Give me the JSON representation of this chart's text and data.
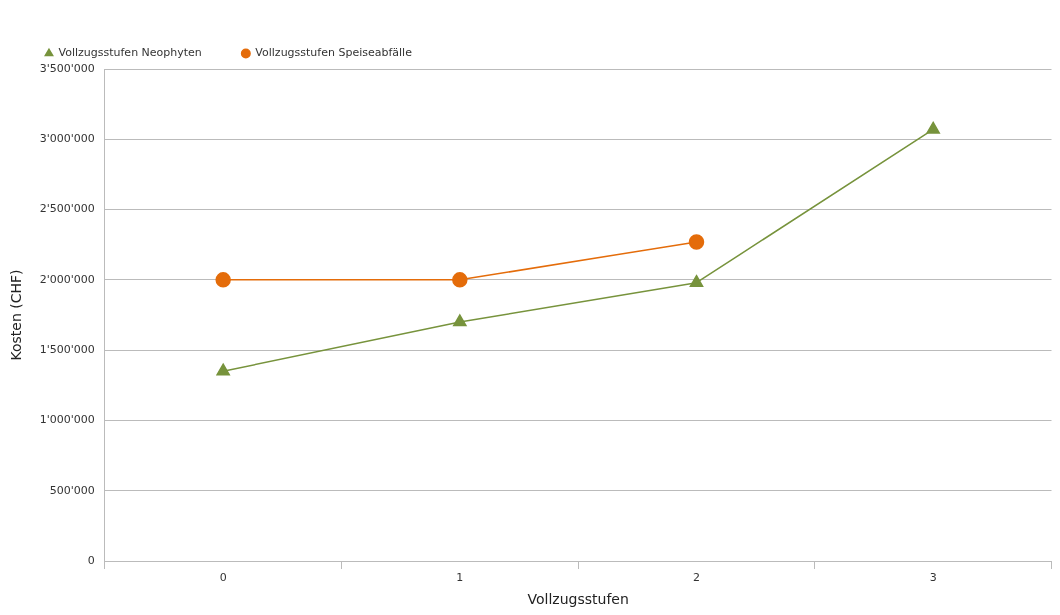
{
  "chart_data": {
    "type": "line",
    "xlabel": "Vollzugsstufen",
    "ylabel": "Kosten (CHF)",
    "categories": [
      "0",
      "1",
      "2",
      "3"
    ],
    "series": [
      {
        "name": "Vollzugsstufen Neophyten",
        "color": "#77933c",
        "marker": "triangle",
        "values": [
          1350000,
          1700000,
          1980000,
          3070000
        ]
      },
      {
        "name": "Vollzugsstufen Speiseabfälle",
        "color": "#e46c0a",
        "marker": "circle",
        "values": [
          2000000,
          2000000,
          2270000,
          null
        ]
      }
    ],
    "ylim": [
      0,
      3500000
    ],
    "yticks": [
      0,
      {
        "value": 500000,
        "label": "500'000"
      },
      {
        "value": 1000000,
        "label": "1'000'000"
      },
      {
        "value": 1500000,
        "label": "1'500'000"
      },
      {
        "value": 2000000,
        "label": "2'000'000"
      },
      {
        "value": 2500000,
        "label": "2'500'000"
      },
      {
        "value": 3000000,
        "label": "3'000'000"
      },
      {
        "value": 3500000,
        "label": "3'500'000"
      }
    ],
    "grid": "y",
    "legend": "top left"
  }
}
